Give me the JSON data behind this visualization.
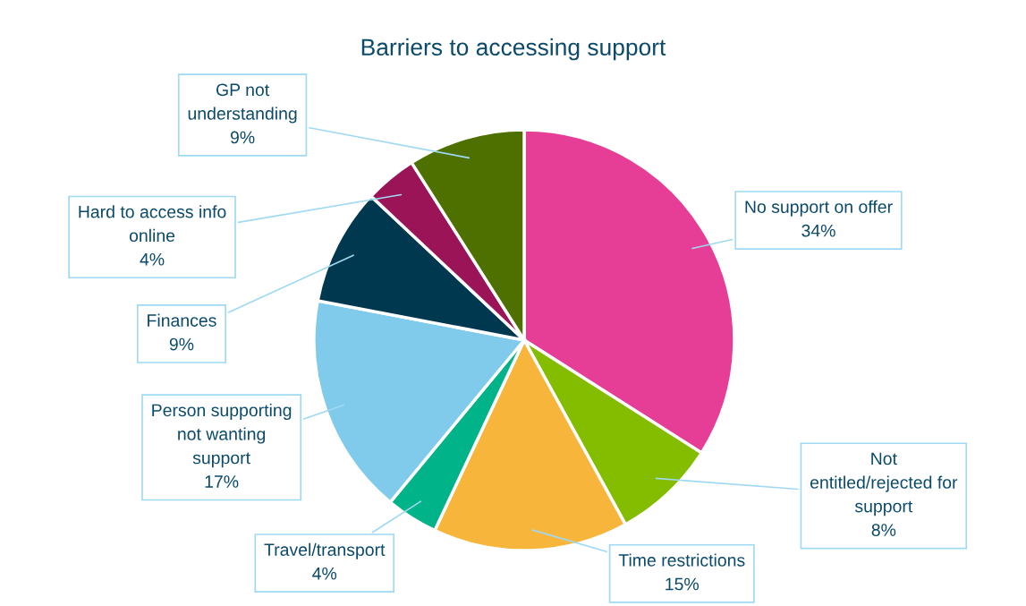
{
  "chart_data": {
    "type": "pie",
    "title": "Barriers to accessing support",
    "categories": [
      "No support on offer",
      "Not\nentitled/rejected for\nsupport",
      "Time restrictions",
      "Travel/transport",
      "Person supporting\nnot wanting\nsupport",
      "Finances",
      "Hard to access info\nonline",
      "GP not\nunderstanding"
    ],
    "values": [
      34,
      8,
      15,
      4,
      17,
      9,
      4,
      9
    ],
    "colors": [
      "#e63e96",
      "#84bd00",
      "#f7b53b",
      "#00b388",
      "#80cbec",
      "#00384f",
      "#9b1458",
      "#4e7000"
    ],
    "value_labels": [
      "34%",
      "8%",
      "15%",
      "4%",
      "17%",
      "9%",
      "4%",
      "9%"
    ],
    "legend": false
  }
}
